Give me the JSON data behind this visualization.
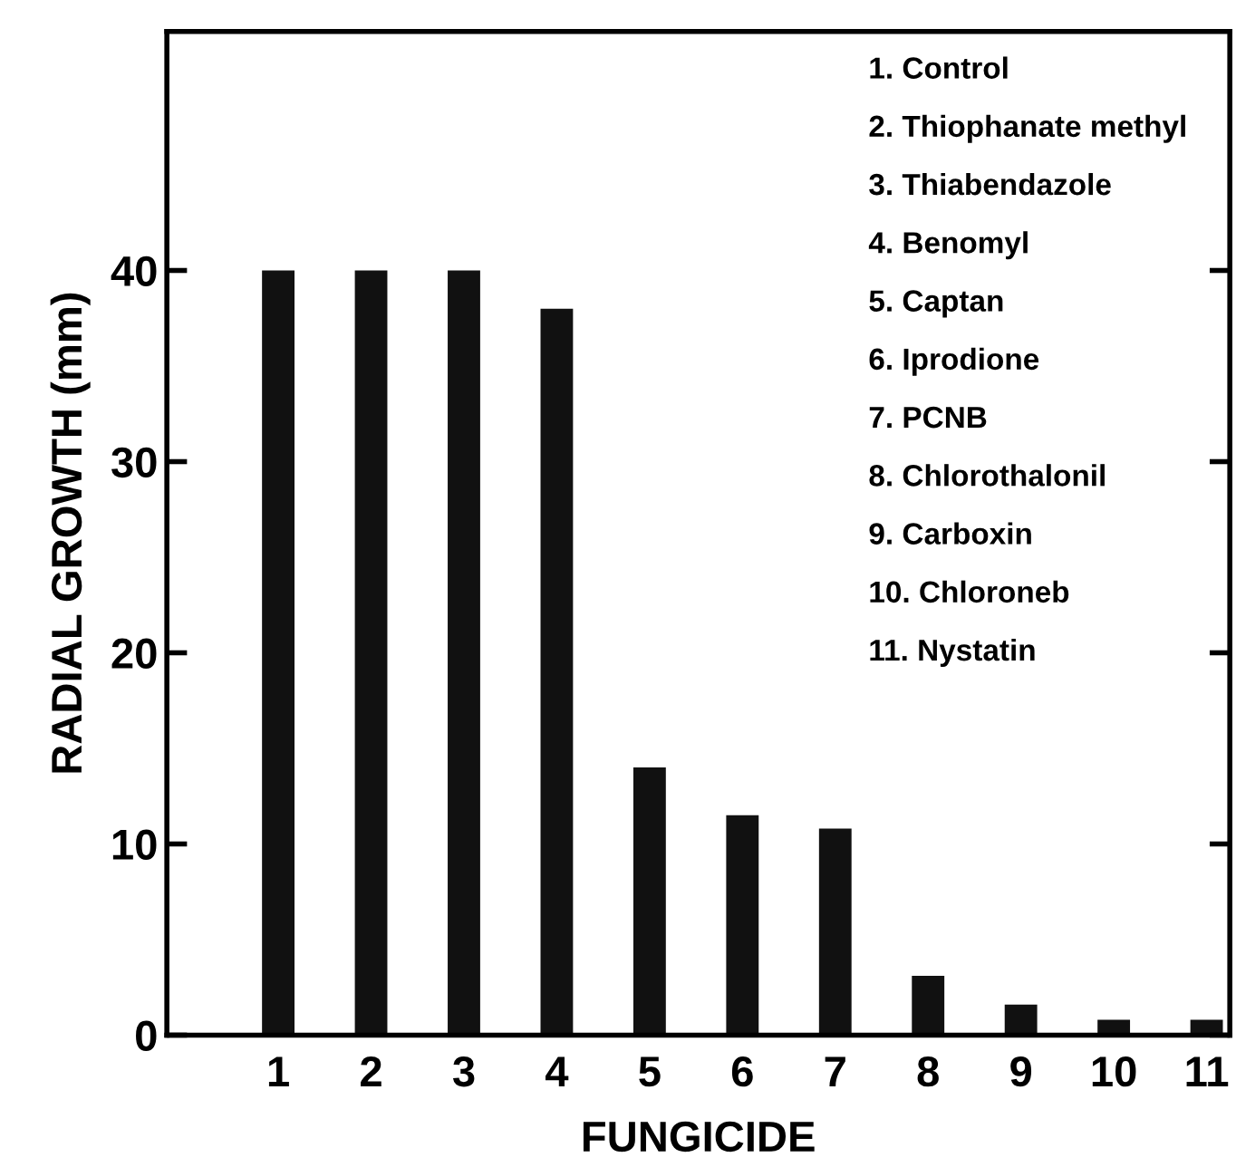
{
  "chart_data": {
    "type": "bar",
    "xlabel": "FUNGICIDE",
    "ylabel": "RADIAL GROWTH (mm)",
    "categories": [
      "1",
      "2",
      "3",
      "4",
      "5",
      "6",
      "7",
      "8",
      "9",
      "10",
      "11"
    ],
    "values": [
      40,
      40,
      40,
      38,
      14,
      11.5,
      10.8,
      3.1,
      1.6,
      0.8,
      0.8
    ],
    "color": "#111111",
    "ylim": [
      0,
      52.5
    ],
    "yticks": [
      0,
      10,
      20,
      30,
      40
    ],
    "grid": false,
    "legend": false,
    "annotations": [
      "1. Control",
      "2. Thiophanate methyl",
      "3. Thiabendazole",
      "4. Benomyl",
      "5. Captan",
      "6. Iprodione",
      "7. PCNB",
      "8. Chlorothalonil",
      "9. Carboxin",
      "10. Chloroneb",
      "11. Nystatin"
    ]
  }
}
